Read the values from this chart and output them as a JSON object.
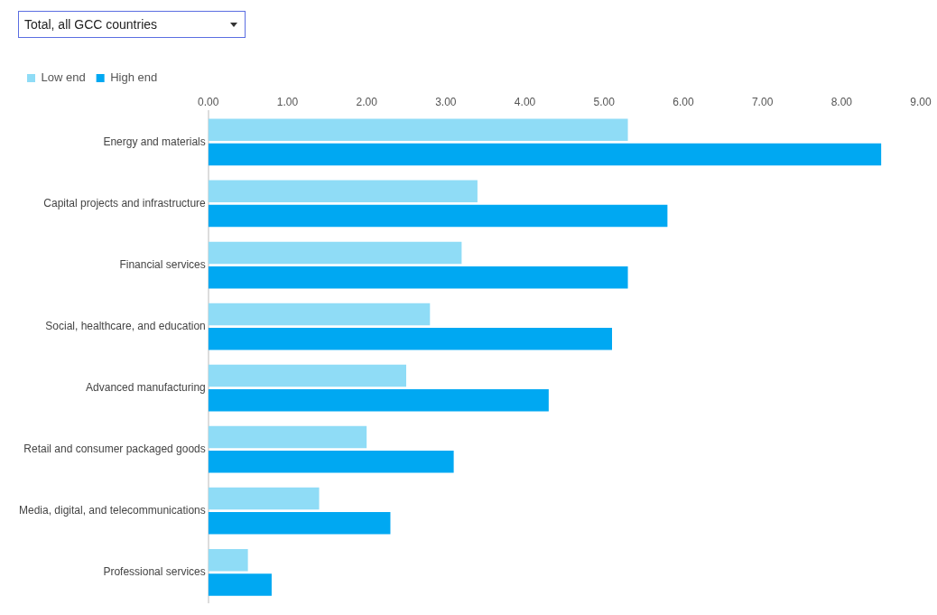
{
  "chart_data": {
    "type": "bar",
    "orientation": "horizontal",
    "title": "Total, all GCC countries",
    "categories": [
      "Energy and materials",
      "Capital projects and infrastructure",
      "Financial services",
      "Social, healthcare, and education",
      "Advanced manufacturing",
      "Retail and consumer packaged goods",
      "Media, digital, and telecommunications",
      "Professional services"
    ],
    "series": [
      {
        "name": "Low end",
        "color": "#8fdcf6",
        "values": [
          5.3,
          3.4,
          3.2,
          2.8,
          2.5,
          2.0,
          1.4,
          0.5
        ]
      },
      {
        "name": "High end",
        "color": "#00a8f2",
        "values": [
          8.5,
          5.8,
          5.3,
          5.1,
          4.3,
          3.1,
          2.3,
          0.8
        ]
      }
    ],
    "xlim": [
      0,
      9
    ],
    "xticks": [
      {
        "value": 0,
        "label": "0.00"
      },
      {
        "value": 1,
        "label": "1.00"
      },
      {
        "value": 2,
        "label": "2.00"
      },
      {
        "value": 3,
        "label": "3.00"
      },
      {
        "value": 4,
        "label": "4.00"
      },
      {
        "value": 5,
        "label": "5.00"
      },
      {
        "value": 6,
        "label": "6.00"
      },
      {
        "value": 7,
        "label": "7.00"
      },
      {
        "value": 8,
        "label": "8.00"
      },
      {
        "value": 9,
        "label": "9.00"
      }
    ],
    "legend": "top left",
    "grid": false
  }
}
